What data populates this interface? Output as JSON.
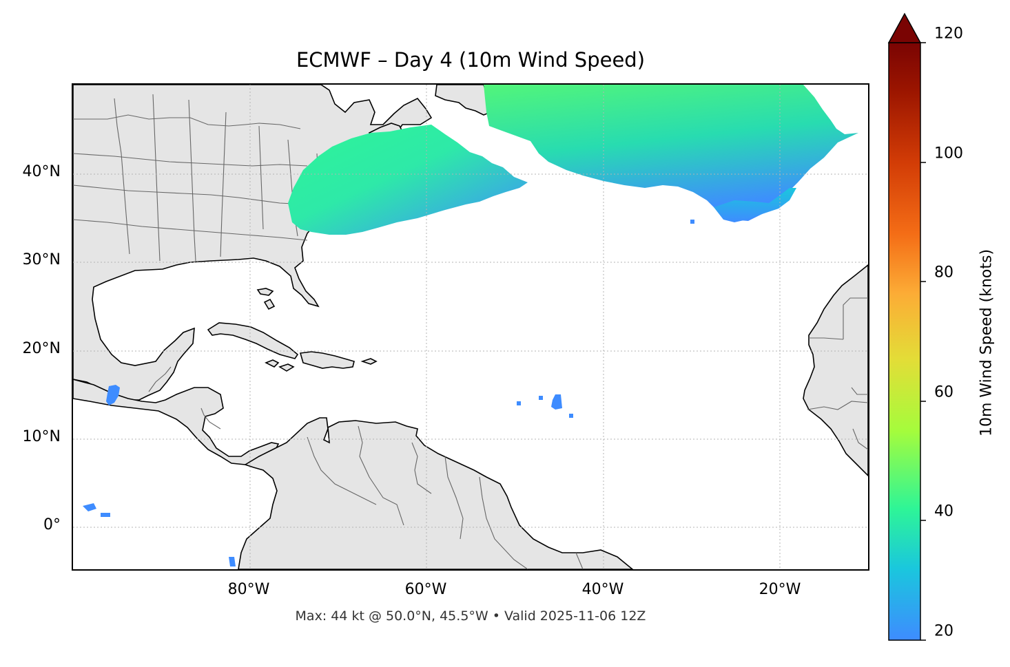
{
  "map": {
    "title": "ECMWF – Day 4 (10m Wind Speed)",
    "footer": "Max: 44 kt @ 50.0°N, 45.5°W • Valid 2025-11-06 12Z",
    "lon_range": [
      -100,
      -10
    ],
    "lat_range": [
      -5,
      50
    ],
    "y_ticks": [
      "0°",
      "10°N",
      "20°N",
      "30°N",
      "40°N"
    ],
    "y_tick_values": [
      0,
      10,
      20,
      30,
      40
    ],
    "x_ticks": [
      "80°W",
      "60°W",
      "40°W",
      "20°W"
    ],
    "x_tick_values": [
      -80,
      -60,
      -40,
      -20
    ],
    "gridlines": true,
    "land_color": "#e5e5e5",
    "coastline_color": "#000000",
    "border_color": "#666666"
  },
  "colorbar": {
    "label": "10m Wind Speed (knots)",
    "ticks": [
      "20",
      "40",
      "60",
      "80",
      "100",
      "120"
    ],
    "tick_values": [
      20,
      40,
      60,
      80,
      100,
      120
    ],
    "range": [
      20,
      120
    ],
    "extend": "max",
    "colormap": "turbo",
    "colors": [
      "#3e8cff",
      "#1ac7dd",
      "#2ef597",
      "#a5fc3c",
      "#e3dd37",
      "#fcac36",
      "#f46d16",
      "#d23c06",
      "#9b1500",
      "#7a0403"
    ]
  },
  "chart_data": {
    "type": "heatmap",
    "variable": "10m Wind Speed",
    "units": "knots",
    "max_value": 44,
    "max_location": "50.0°N, 45.5°W",
    "valid": "2025-11-06 12Z"
  }
}
